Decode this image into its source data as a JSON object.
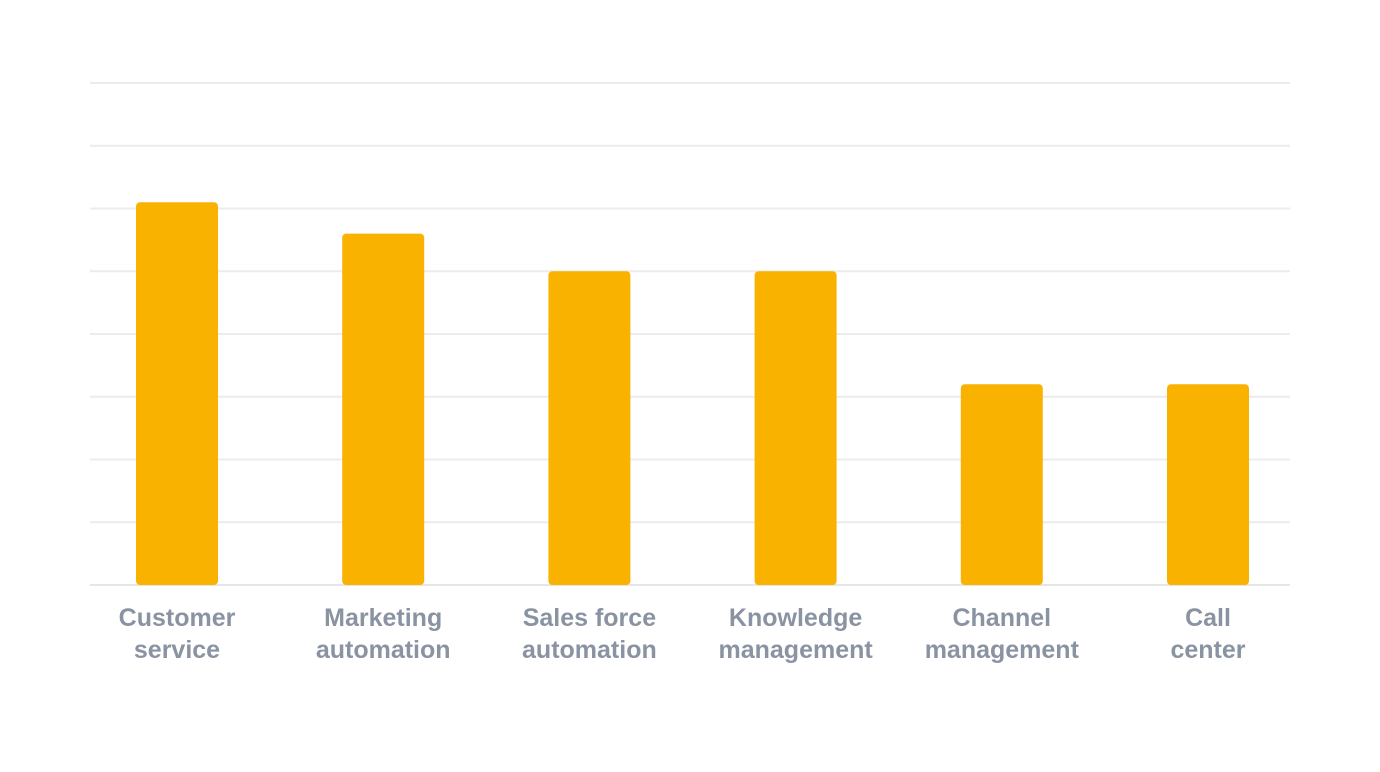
{
  "chart_data": {
    "type": "bar",
    "title": "",
    "xlabel": "",
    "ylabel": "",
    "categories": [
      [
        "Customer",
        "service"
      ],
      [
        "Marketing",
        "automation"
      ],
      [
        "Sales force",
        "automation"
      ],
      [
        "Knowledge",
        "management"
      ],
      [
        "Channel",
        "management"
      ],
      [
        "Call",
        "center"
      ]
    ],
    "values": [
      61,
      56,
      50,
      50,
      32,
      32
    ],
    "ylim": [
      0,
      80
    ],
    "grid_step": 10,
    "grid": true,
    "legend": "none",
    "bar_color": "#F9B200"
  }
}
